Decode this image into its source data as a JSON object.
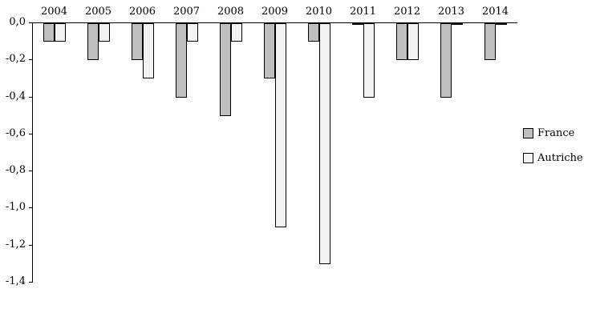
{
  "chart_data": {
    "type": "bar",
    "title": "",
    "xlabel": "",
    "ylabel": "",
    "categories": [
      "2004",
      "2005",
      "2006",
      "2007",
      "2008",
      "2009",
      "2010",
      "2011",
      "2012",
      "2013",
      "2014"
    ],
    "series": [
      {
        "name": "France",
        "color": "#bfbfbf",
        "values": [
          -0.1,
          -0.2,
          -0.2,
          -0.4,
          -0.5,
          -0.3,
          -0.1,
          -0.01,
          -0.2,
          -0.4,
          -0.2
        ]
      },
      {
        "name": "Autriche",
        "color": "#f2f2f2",
        "values": [
          -0.1,
          -0.1,
          -0.3,
          -0.1,
          -0.1,
          -1.1,
          -1.3,
          -0.4,
          -0.2,
          -0.01,
          -0.01
        ]
      }
    ],
    "ylim": [
      -1.4,
      0
    ],
    "yticks": [
      {
        "label": "0,0",
        "value": 0
      },
      {
        "label": "-0,2",
        "value": -0.2
      },
      {
        "label": "-0,4",
        "value": -0.4
      },
      {
        "label": "-0,6",
        "value": -0.6
      },
      {
        "label": "-0,8",
        "value": -0.8
      },
      {
        "label": "-1,0",
        "value": -1.0
      },
      {
        "label": "-1,2",
        "value": -1.2
      },
      {
        "label": "-1,4",
        "value": -1.4
      }
    ],
    "grid": false,
    "legend_position": "right",
    "axis_color": "#000000",
    "background_color": "#ffffff"
  }
}
